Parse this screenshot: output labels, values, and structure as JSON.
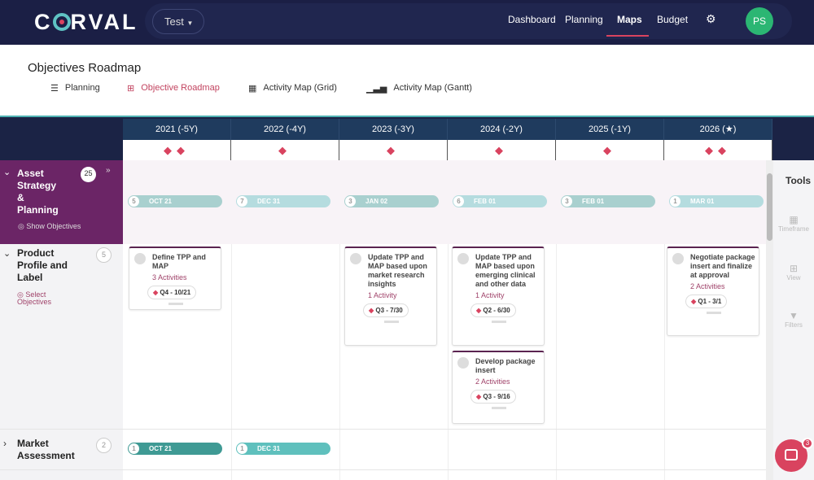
{
  "nav": {
    "logo": "CORVAL",
    "env": "Test",
    "links": [
      "Dashboard",
      "Planning",
      "Maps",
      "Budget"
    ],
    "active": "Maps",
    "avatar": "PS"
  },
  "page": {
    "title": "Objectives Roadmap",
    "tabs": [
      {
        "label": "Planning",
        "icon": "list-icon"
      },
      {
        "label": "Objective Roadmap",
        "icon": "map-icon",
        "active": true
      },
      {
        "label": "Activity Map (Grid)",
        "icon": "grid-icon"
      },
      {
        "label": "Activity Map (Gantt)",
        "icon": "bar-chart-icon"
      }
    ]
  },
  "years": [
    {
      "label": "2021 (-5Y)",
      "milestones": "◆◆"
    },
    {
      "label": "2022 (-4Y)",
      "milestones": "◆"
    },
    {
      "label": "2023 (-3Y)",
      "milestones": "◆"
    },
    {
      "label": "2024 (-2Y)",
      "milestones": "◆"
    },
    {
      "label": "2025 (-1Y)",
      "milestones": "◆"
    },
    {
      "label": "2026 (★)",
      "milestones": "◆◆"
    }
  ],
  "groups": [
    {
      "name": "Asset Strategy & Planning",
      "count": "25",
      "action": "Show Objectives",
      "pills": [
        {
          "n": "5",
          "date": "OCT 21"
        },
        {
          "n": "7",
          "date": "DEC 31"
        },
        {
          "n": "3",
          "date": "JAN 02"
        },
        {
          "n": "6",
          "date": "FEB 01"
        },
        {
          "n": "3",
          "date": "FEB 01"
        },
        {
          "n": "1",
          "date": "MAR 01"
        }
      ]
    },
    {
      "name": "Product Profile and Label",
      "count": "5",
      "action": "Select Objectives"
    },
    {
      "name": "Market Assessment",
      "count": "2",
      "pills": [
        {
          "n": "1",
          "date": "OCT 21"
        },
        {
          "n": "1",
          "date": "DEC 31"
        }
      ]
    }
  ],
  "cards": [
    {
      "title": "Define TPP and MAP",
      "activities": "3 Activities",
      "due": "Q4 - 10/21"
    },
    {
      "title": "Update TPP and MAP based upon market research insights",
      "activities": "1 Activity",
      "due": "Q3 - 7/30"
    },
    {
      "title": "Update TPP and MAP based upon emerging clinical and other data",
      "activities": "1 Activity",
      "due": "Q2 - 6/30"
    },
    {
      "title": "Develop package insert",
      "activities": "2 Activities",
      "due": "Q3 - 9/16"
    },
    {
      "title": "Negotiate package insert and finalize at approval",
      "activities": "2 Activities",
      "due": "Q1 - 3/1"
    }
  ],
  "tools": {
    "title": "Tools",
    "items": [
      "Timeframe",
      "View",
      "Filters"
    ]
  },
  "chat": {
    "badge": "3"
  },
  "colors": {
    "navy": "#1b1f45",
    "accent": "#d9435f",
    "purple": "#6b2566",
    "teal": "#a9d2d2"
  }
}
